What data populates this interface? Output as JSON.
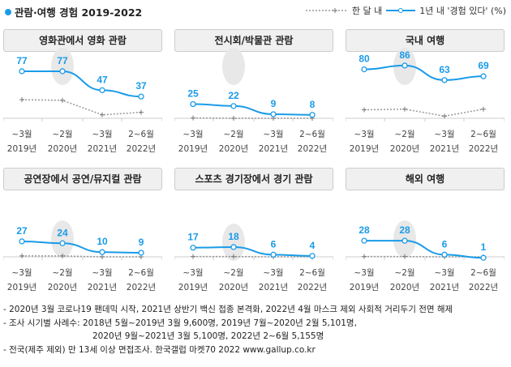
{
  "title": "관람·여행 경험 2019-2022",
  "legend": {
    "monthly": "한 달 내",
    "yearly": "1년 내 '경험 있다' (%)"
  },
  "colors": {
    "yearly": "#1a9be8",
    "monthly": "#999999",
    "highlight": "#e8e8e8"
  },
  "chart_data": [
    {
      "type": "line",
      "title": "영화관에서 영화 관람",
      "categories": [
        "~3월 2019년",
        "~2월 2020년",
        "~3월 2021년",
        "2~6월 2022년"
      ],
      "series": [
        {
          "name": "1년 내 '경험 있다'",
          "values": [
            77,
            77,
            47,
            37
          ]
        },
        {
          "name": "한 달 내",
          "values": [
            32,
            31,
            8,
            12
          ]
        }
      ]
    },
    {
      "type": "line",
      "title": "전시회/박물관 관람",
      "categories": [
        "~3월 2019년",
        "~2월 2020년",
        "~3월 2021년",
        "2~6월 2022년"
      ],
      "series": [
        {
          "name": "1년 내 '경험 있다'",
          "values": [
            25,
            22,
            9,
            8
          ]
        },
        {
          "name": "한 달 내",
          "values": [
            3,
            2,
            1,
            1
          ]
        }
      ]
    },
    {
      "type": "line",
      "title": "국내 여행",
      "categories": [
        "~3월 2019년",
        "~2월 2020년",
        "~3월 2021년",
        "2~6월 2022년"
      ],
      "series": [
        {
          "name": "1년 내 '경험 있다'",
          "values": [
            80,
            86,
            63,
            69
          ]
        },
        {
          "name": "한 달 내",
          "values": [
            16,
            17,
            6,
            17
          ]
        }
      ]
    },
    {
      "type": "line",
      "title": "공연장에서 공연/뮤지컬 관람",
      "categories": [
        "~3월 2019년",
        "~2월 2020년",
        "~3월 2021년",
        "2~6월 2022년"
      ],
      "series": [
        {
          "name": "1년 내 '경험 있다'",
          "values": [
            27,
            24,
            10,
            9
          ]
        },
        {
          "name": "한 달 내",
          "values": [
            4,
            4,
            1,
            1
          ]
        }
      ]
    },
    {
      "type": "line",
      "title": "스포츠 경기장에서 경기 관람",
      "categories": [
        "~3월 2019년",
        "~2월 2020년",
        "~3월 2021년",
        "2~6월 2022년"
      ],
      "series": [
        {
          "name": "1년 내 '경험 있다'",
          "values": [
            17,
            18,
            6,
            4
          ]
        },
        {
          "name": "한 달 내",
          "values": [
            3,
            3,
            1,
            1
          ]
        }
      ]
    },
    {
      "type": "line",
      "title": "해외 여행",
      "categories": [
        "~3월 2019년",
        "~2월 2020년",
        "~3월 2021년",
        "2~6월 2022년"
      ],
      "series": [
        {
          "name": "1년 내 '경험 있다'",
          "values": [
            28,
            28,
            6,
            1
          ]
        },
        {
          "name": "한 달 내",
          "values": [
            3,
            3,
            1,
            1
          ]
        }
      ]
    }
  ],
  "xlabels": {
    "months": [
      "~3월",
      "~2월",
      "~3월",
      "2~6월"
    ],
    "years": [
      "2019년",
      "2020년",
      "2021년",
      "2022년"
    ]
  },
  "notes": [
    "- 2020년 3월 코로나19 팬데믹 시작, 2021년 상반기 백신 접종 본격화, 2022년 4월 마스크 제외 사회적 거리두기 전면 해제",
    "- 조사 시기별 사례수: 2018년 5월~2019년 3월 9,600명, 2019년 7월~2020년 2월 5,101명,",
    "2020년 9월~2021년 3월 5,100명, 2022년 2~6월 5,155명",
    "- 전국(제주 제외) 만 13세 이상 면접조사. 한국갤럽 마켓70 2022 www.gallup.co.kr"
  ]
}
